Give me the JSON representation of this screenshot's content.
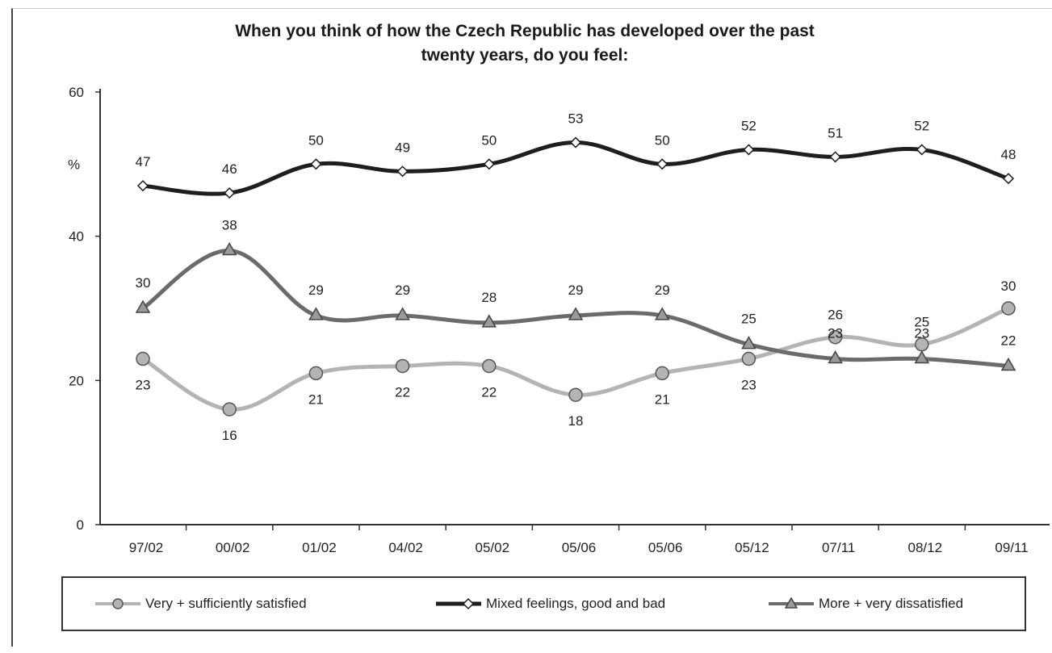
{
  "chart_data": {
    "type": "line",
    "title_line1": "When you think of how the Czech Republic has developed over the past",
    "title_line2": "twenty years, do you feel:",
    "ylabel": "%",
    "ylim": [
      0,
      60
    ],
    "yticks": [
      "0",
      "20",
      "40",
      "60"
    ],
    "categories": [
      "97/02",
      "00/02",
      "01/02",
      "04/02",
      "05/02",
      "05/06",
      "05/06",
      "05/12",
      "07/11",
      "08/12",
      "09/11"
    ],
    "series": [
      {
        "name": "Very + sufficiently satisfied",
        "marker": "circle",
        "color": "#b4b4b4",
        "values": [
          23,
          16,
          21,
          22,
          22,
          18,
          21,
          23,
          26,
          25,
          30
        ]
      },
      {
        "name": "Mixed feelings, good and bad",
        "marker": "diamond",
        "color": "#1e1e1e",
        "values": [
          47,
          46,
          50,
          49,
          50,
          53,
          50,
          52,
          51,
          52,
          48
        ]
      },
      {
        "name": "More + very dissatisfied",
        "marker": "triangle",
        "color": "#6b6b6b",
        "values": [
          30,
          38,
          29,
          29,
          28,
          29,
          29,
          25,
          23,
          23,
          22
        ]
      }
    ],
    "legend_position": "bottom",
    "grid": false
  }
}
